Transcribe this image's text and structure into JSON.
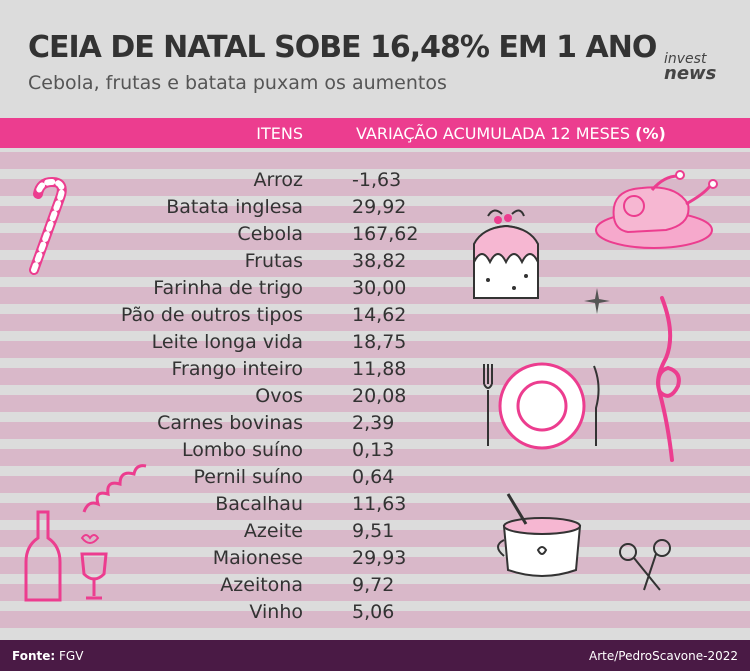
{
  "header": {
    "title": "CEIA DE NATAL SOBE 16,48% EM 1 ANO",
    "subtitle": "Cebola, frutas e batata puxam os aumentos",
    "logo_line1": "invest",
    "logo_line2": "news"
  },
  "table_header": {
    "items_label": "ITENS",
    "variation_label": "VARIAÇÃO ACUMULADA 12 MESES",
    "variation_unit": "(%)"
  },
  "chart_data": {
    "type": "table",
    "title": "CEIA DE NATAL SOBE 16,48% EM 1 ANO",
    "subtitle": "Cebola, frutas e batata puxam os aumentos",
    "columns": [
      "ITENS",
      "VARIAÇÃO ACUMULADA 12 MESES (%)"
    ],
    "rows": [
      {
        "item": "Arroz",
        "value": "-1,63"
      },
      {
        "item": "Batata inglesa",
        "value": "29,92"
      },
      {
        "item": "Cebola",
        "value": "167,62"
      },
      {
        "item": "Frutas",
        "value": "38,82"
      },
      {
        "item": "Farinha de trigo",
        "value": "30,00"
      },
      {
        "item": "Pão de outros tipos",
        "value": "14,62"
      },
      {
        "item": "Leite longa vida",
        "value": "18,75"
      },
      {
        "item": "Frango inteiro",
        "value": "11,88"
      },
      {
        "item": "Ovos",
        "value": "20,08"
      },
      {
        "item": "Carnes bovinas",
        "value": "2,39"
      },
      {
        "item": "Lombo suíno",
        "value": "0,13"
      },
      {
        "item": "Pernil suíno",
        "value": "0,64"
      },
      {
        "item": "Bacalhau",
        "value": "11,63"
      },
      {
        "item": "Azeite",
        "value": "9,51"
      },
      {
        "item": "Maionese",
        "value": "29,93"
      },
      {
        "item": "Azeitona",
        "value": "9,72"
      },
      {
        "item": "Vinho",
        "value": "5,06"
      }
    ]
  },
  "footer": {
    "source_label": "Fonte:",
    "source_value": "FGV",
    "credit": "Arte/PedroScavone-2022"
  },
  "colors": {
    "accent": "#ec3d8f",
    "stripe": "#d9b8c9",
    "background": "#dcdcdc",
    "footer": "#4a1a45"
  },
  "decorations": [
    "candy-cane-icon",
    "roast-chicken-icon",
    "christmas-pudding-icon",
    "sparkle-icon",
    "plate-cutlery-icon",
    "ribbon-icon",
    "wine-bottle-glass-icon",
    "streamer-icon",
    "hot-chocolate-mug-icon",
    "scissors-icon"
  ]
}
